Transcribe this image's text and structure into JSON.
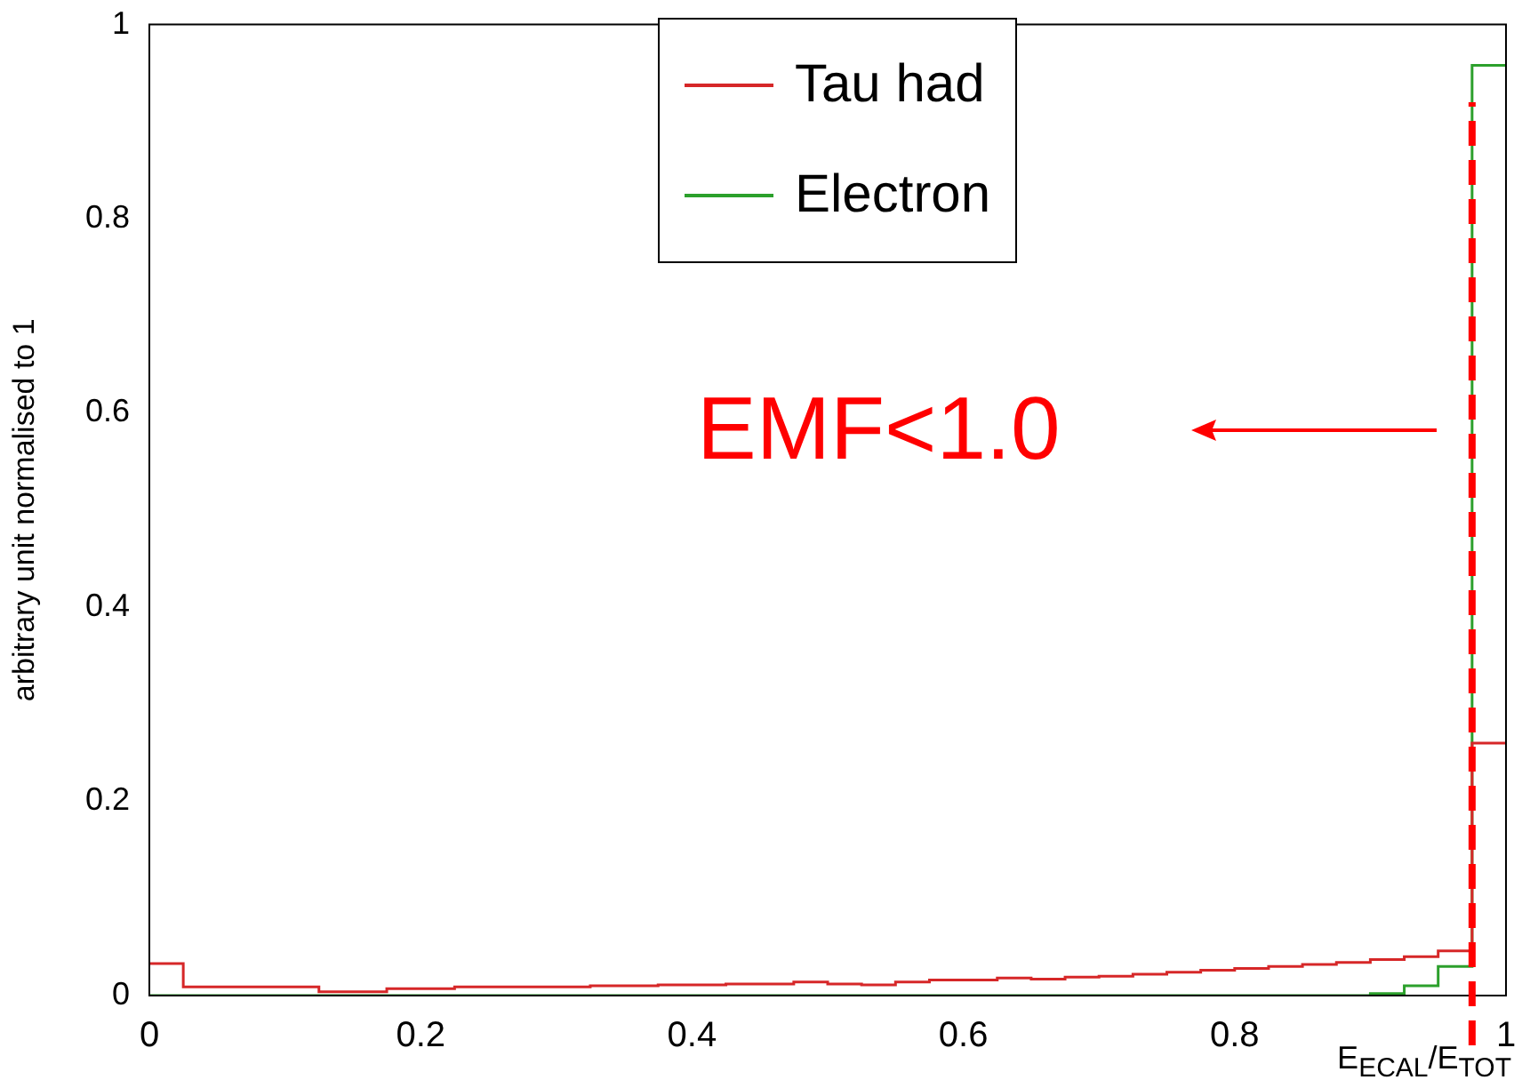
{
  "chart_data": {
    "type": "histogram",
    "xlabel": "E$_{ECAL}$/E$_{TOT}$",
    "ylabel": "arbitrary unit normalised to 1",
    "bins": [
      0,
      0.025,
      0.05,
      0.075,
      0.1,
      0.125,
      0.15,
      0.175,
      0.2,
      0.225,
      0.25,
      0.275,
      0.3,
      0.325,
      0.35,
      0.375,
      0.4,
      0.425,
      0.45,
      0.475,
      0.5,
      0.525,
      0.55,
      0.575,
      0.6,
      0.625,
      0.65,
      0.675,
      0.7,
      0.725,
      0.75,
      0.775,
      0.8,
      0.825,
      0.85,
      0.875,
      0.9,
      0.925,
      0.95,
      0.975,
      1
    ],
    "series": [
      {
        "name": "Tau had",
        "color": "#d62728",
        "values": [
          0.033,
          0.009,
          0.009,
          0.009,
          0.009,
          0.004,
          0.004,
          0.007,
          0.007,
          0.009,
          0.009,
          0.009,
          0.009,
          0.01,
          0.01,
          0.011,
          0.011,
          0.012,
          0.012,
          0.014,
          0.012,
          0.011,
          0.014,
          0.016,
          0.016,
          0.018,
          0.017,
          0.019,
          0.02,
          0.022,
          0.024,
          0.026,
          0.028,
          0.03,
          0.032,
          0.034,
          0.037,
          0.04,
          0.046,
          0.26
        ]
      },
      {
        "name": "Electron",
        "color": "#2ca02c",
        "values": [
          0,
          0,
          0,
          0,
          0,
          0,
          0,
          0,
          0,
          0,
          0,
          0,
          0,
          0,
          0,
          0,
          0,
          0,
          0,
          0,
          0,
          0,
          0,
          0,
          0,
          0,
          0,
          0,
          0,
          0,
          0,
          0,
          0,
          0,
          0,
          0,
          0.002,
          0.01,
          0.03,
          0.958
        ]
      }
    ],
    "xlim": [
      0,
      1
    ],
    "ylim": [
      0,
      1
    ],
    "xticks": [
      0,
      0.2,
      0.4,
      0.6,
      0.8,
      1
    ],
    "yticks": [
      0,
      0.2,
      0.4,
      0.6,
      0.8,
      1
    ],
    "ref_lines": [
      {
        "axis": "x",
        "value": 0.975,
        "color": "#ff0000",
        "line_style": "dashed"
      }
    ],
    "annotations": [
      "EMF<1.0"
    ],
    "legend": "top",
    "grid": false
  }
}
